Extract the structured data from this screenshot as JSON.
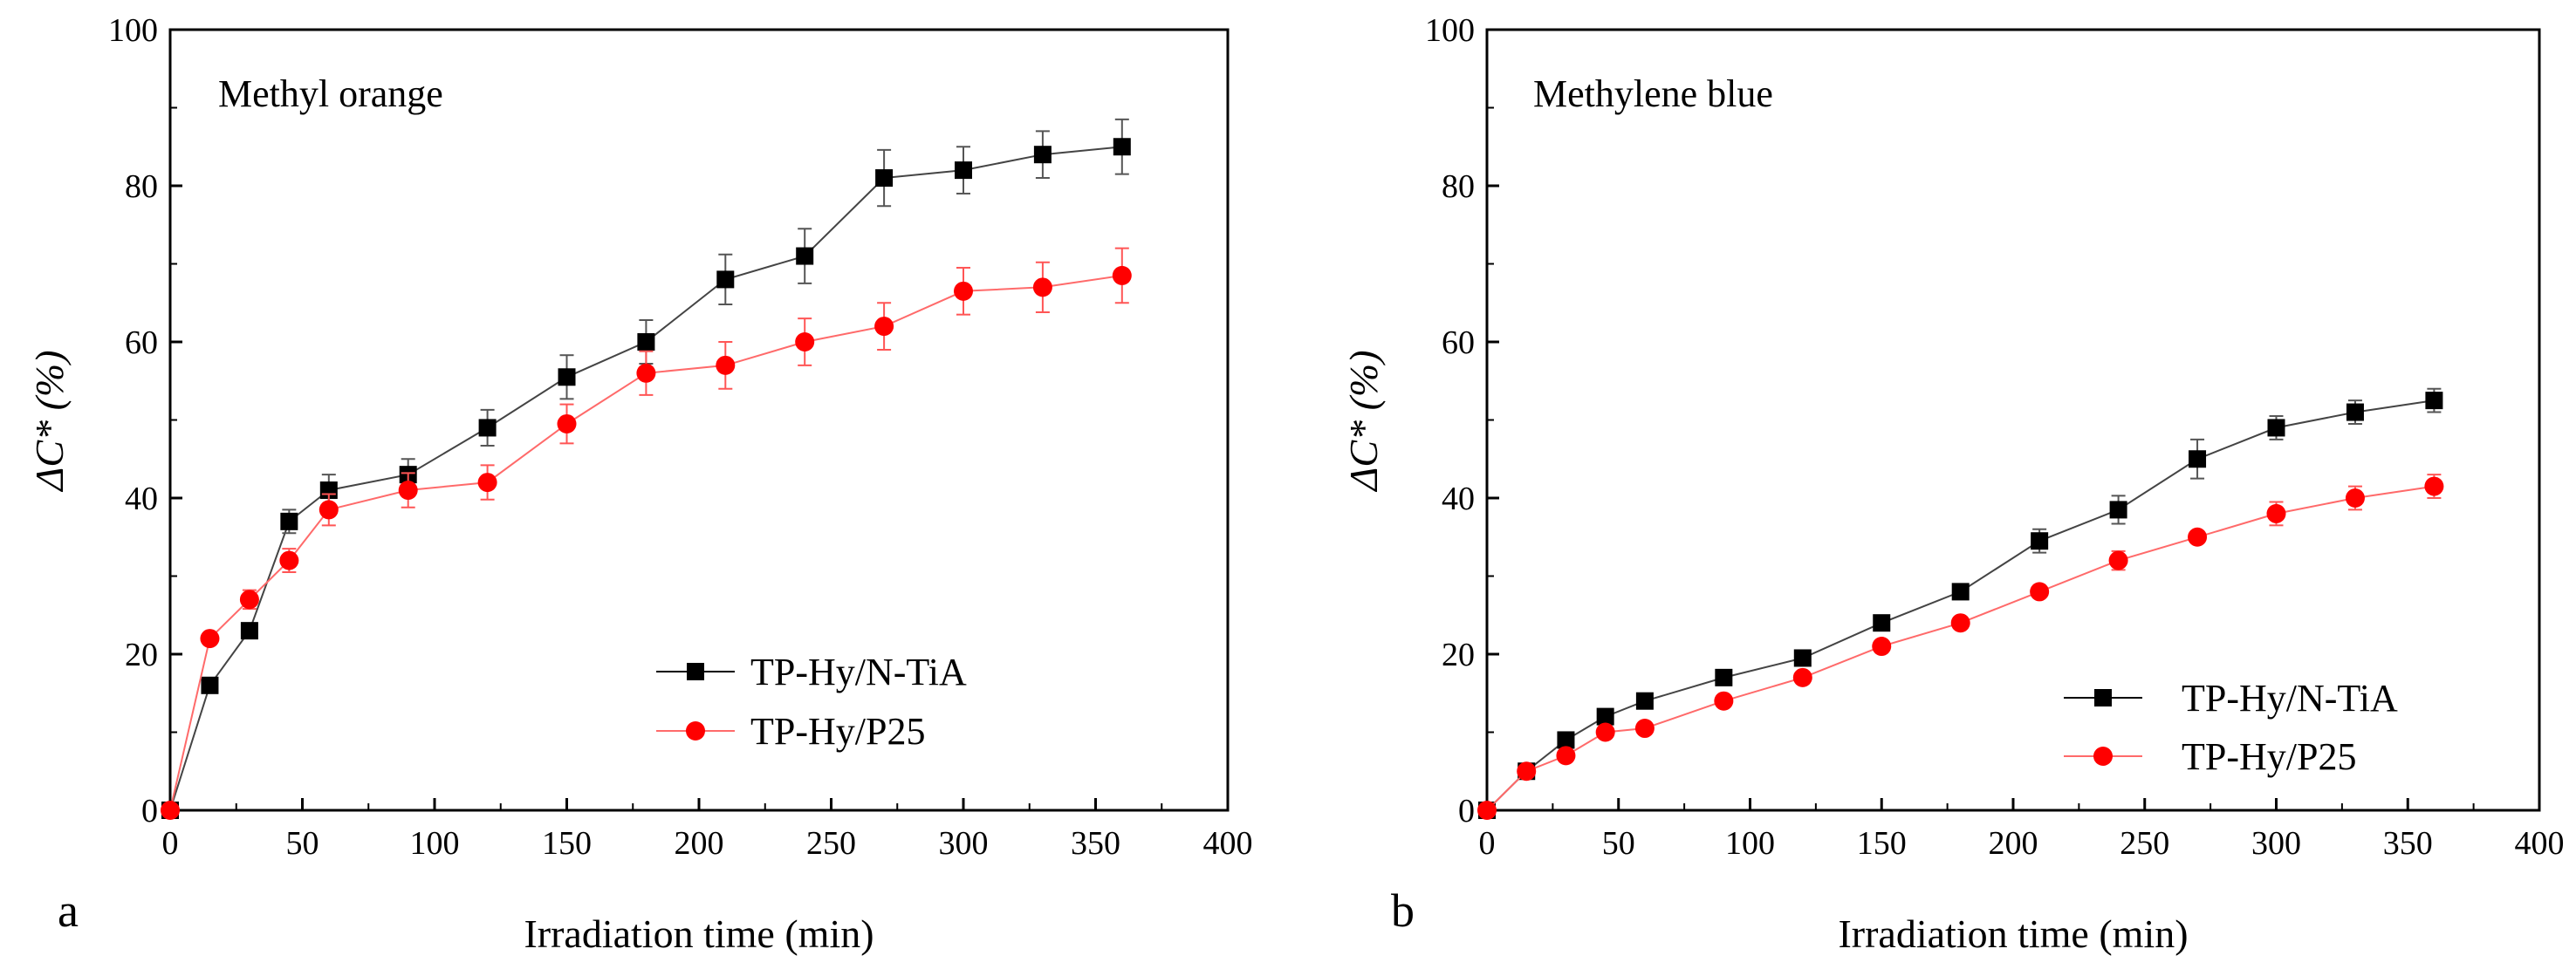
{
  "chart_data": [
    {
      "type": "line",
      "panel_label": "a",
      "title": "Methyl orange",
      "xlabel": "Irradiation time (min)",
      "ylabel": "ΔC* (%)",
      "xlim": [
        0,
        400
      ],
      "ylim": [
        0,
        100
      ],
      "xticks": [
        "0",
        "50",
        "100",
        "150",
        "200",
        "250",
        "300",
        "350",
        "400"
      ],
      "yticks": [
        "0",
        "20",
        "40",
        "60",
        "80",
        "100"
      ],
      "legend_position": "lower-right",
      "series": [
        {
          "name": "TP-Hy/N-TiA",
          "color": "#000000",
          "marker": "square",
          "x": [
            0,
            15,
            30,
            45,
            60,
            90,
            120,
            150,
            180,
            210,
            240,
            270,
            300,
            330,
            360
          ],
          "y": [
            0,
            16,
            23,
            37,
            41,
            43,
            49,
            55.5,
            60,
            68,
            71,
            81,
            82,
            84,
            85
          ],
          "err": [
            0,
            0,
            0,
            1.5,
            2,
            2,
            2.3,
            2.8,
            2.8,
            3.2,
            3.5,
            3.6,
            3,
            3,
            3.5
          ]
        },
        {
          "name": "TP-Hy/P25",
          "color": "#ff0000",
          "marker": "circle",
          "x": [
            0,
            15,
            30,
            45,
            60,
            90,
            120,
            150,
            180,
            210,
            240,
            270,
            300,
            330,
            360
          ],
          "y": [
            0,
            22,
            27,
            32,
            38.5,
            41,
            42,
            49.5,
            56,
            57,
            60,
            62,
            66.5,
            67,
            68.5
          ],
          "err": [
            0,
            0,
            1.2,
            1.5,
            2,
            2.2,
            2.2,
            2.5,
            2.8,
            3,
            3,
            3,
            3,
            3.2,
            3.5
          ]
        }
      ]
    },
    {
      "type": "line",
      "panel_label": "b",
      "title": "Methylene blue",
      "xlabel": "Irradiation time (min)",
      "ylabel": "ΔC* (%)",
      "xlim": [
        0,
        400
      ],
      "ylim": [
        0,
        100
      ],
      "xticks": [
        "0",
        "50",
        "100",
        "150",
        "200",
        "250",
        "300",
        "350",
        "400"
      ],
      "yticks": [
        "0",
        "20",
        "40",
        "60",
        "80",
        "100"
      ],
      "legend_position": "lower-right",
      "series": [
        {
          "name": "TP-Hy/N-TiA",
          "color": "#000000",
          "marker": "square",
          "x": [
            0,
            15,
            30,
            45,
            60,
            90,
            120,
            150,
            180,
            210,
            240,
            270,
            300,
            330,
            360
          ],
          "y": [
            0,
            5,
            9,
            12,
            14,
            17,
            19.5,
            24,
            28,
            34.5,
            38.5,
            45,
            49,
            51,
            52.5
          ],
          "err": [
            0,
            0,
            0,
            0,
            0,
            0,
            0,
            0,
            0,
            1.5,
            1.8,
            2.5,
            1.5,
            1.5,
            1.5
          ]
        },
        {
          "name": "TP-Hy/P25",
          "color": "#ff0000",
          "marker": "circle",
          "x": [
            0,
            15,
            30,
            45,
            60,
            90,
            120,
            150,
            180,
            210,
            240,
            270,
            300,
            330,
            360
          ],
          "y": [
            0,
            5,
            7,
            10,
            10.5,
            14,
            17,
            21,
            24,
            28,
            32,
            35,
            38,
            40,
            41.5
          ],
          "err": [
            0,
            0,
            0,
            0,
            0,
            0,
            0,
            0,
            0,
            0,
            1.2,
            0,
            1.5,
            1.5,
            1.5
          ]
        }
      ]
    }
  ]
}
